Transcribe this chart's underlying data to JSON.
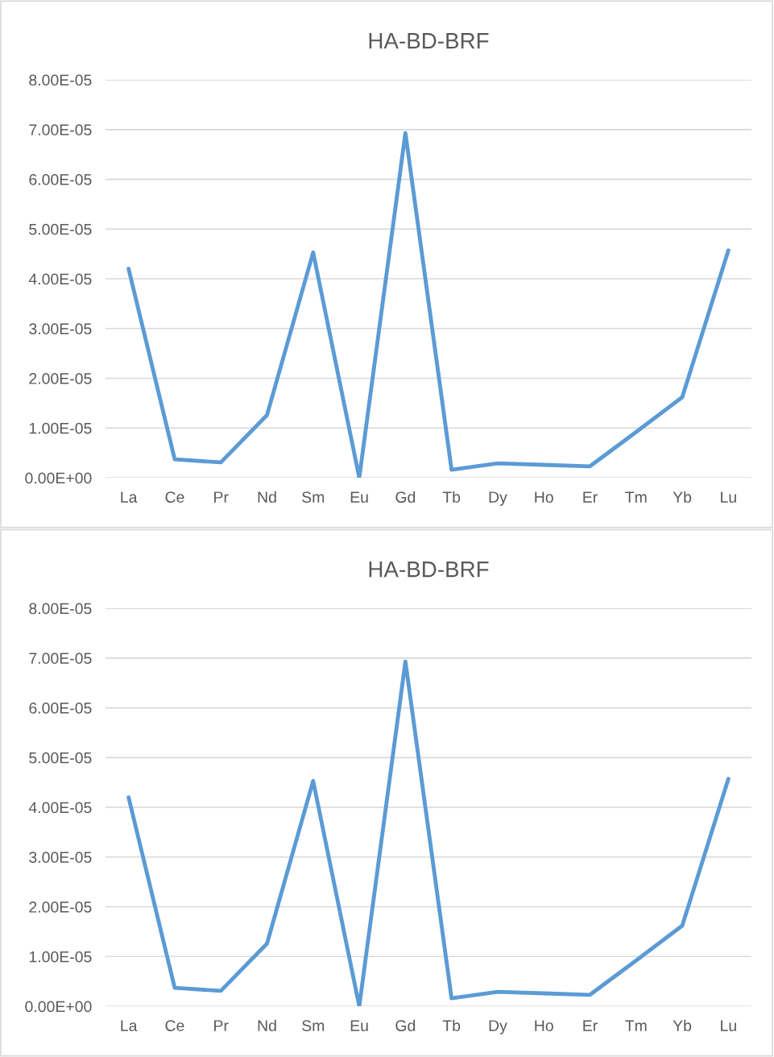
{
  "chart_data": [
    {
      "type": "line",
      "title": "HA-BD-BRF",
      "categories": [
        "La",
        "Ce",
        "Pr",
        "Nd",
        "Sm",
        "Eu",
        "Gd",
        "Tb",
        "Dy",
        "Ho",
        "Er",
        "Tm",
        "Yb",
        "Lu"
      ],
      "series": [
        {
          "color": "#5b9bd5",
          "values": [
            4.2e-05,
            3.7e-06,
            3.1e-06,
            1.26e-05,
            4.53e-05,
            0.0,
            6.93e-05,
            1.6e-06,
            2.9e-06,
            2.6e-06,
            2.3e-06,
            9.2e-06,
            1.62e-05,
            4.57e-05
          ]
        }
      ],
      "ylim": [
        0,
        8e-05
      ],
      "yticks": [
        {
          "value": 0,
          "label": "0.00E+00"
        },
        {
          "value": 1e-05,
          "label": "1.00E-05"
        },
        {
          "value": 2e-05,
          "label": "2.00E-05"
        },
        {
          "value": 3e-05,
          "label": "3.00E-05"
        },
        {
          "value": 4e-05,
          "label": "4.00E-05"
        },
        {
          "value": 5e-05,
          "label": "5.00E-05"
        },
        {
          "value": 6e-05,
          "label": "6.00E-05"
        },
        {
          "value": 7e-05,
          "label": "7.00E-05"
        },
        {
          "value": 8e-05,
          "label": "8.00E-05"
        }
      ],
      "grid": "y",
      "marker": "none",
      "line_style": "solid"
    },
    {
      "type": "line",
      "title": "HA-BD-BRF",
      "categories": [
        "La",
        "Ce",
        "Pr",
        "Nd",
        "Sm",
        "Eu",
        "Gd",
        "Tb",
        "Dy",
        "Ho",
        "Er",
        "Tm",
        "Yb",
        "Lu"
      ],
      "series": [
        {
          "color": "#5b9bd5",
          "values": [
            4.2e-05,
            3.7e-06,
            3.1e-06,
            1.26e-05,
            4.53e-05,
            0.0,
            6.93e-05,
            1.6e-06,
            2.9e-06,
            2.6e-06,
            2.3e-06,
            9.2e-06,
            1.62e-05,
            4.57e-05
          ]
        }
      ],
      "ylim": [
        0,
        8e-05
      ],
      "yticks": [
        {
          "value": 0,
          "label": "0.00E+00"
        },
        {
          "value": 1e-05,
          "label": "1.00E-05"
        },
        {
          "value": 2e-05,
          "label": "2.00E-05"
        },
        {
          "value": 3e-05,
          "label": "3.00E-05"
        },
        {
          "value": 4e-05,
          "label": "4.00E-05"
        },
        {
          "value": 5e-05,
          "label": "5.00E-05"
        },
        {
          "value": 6e-05,
          "label": "6.00E-05"
        },
        {
          "value": 7e-05,
          "label": "7.00E-05"
        },
        {
          "value": 8e-05,
          "label": "8.00E-05"
        }
      ],
      "grid": "y",
      "marker": "none",
      "line_style": "solid"
    }
  ]
}
